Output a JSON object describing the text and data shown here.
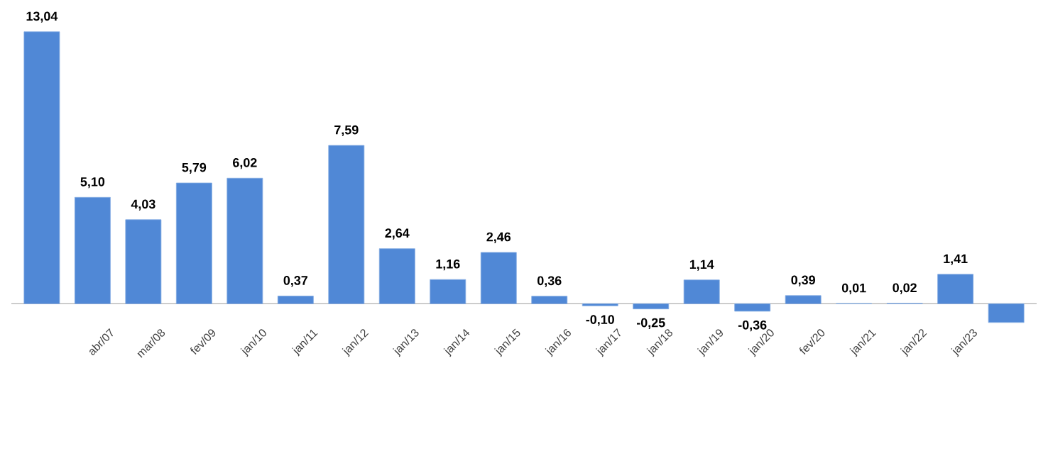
{
  "chart_data": {
    "type": "bar",
    "categories": [
      null,
      "abr/07",
      "mar/08",
      "fev/09",
      "jan/10",
      "jan/11",
      "jan/12",
      "jan/13",
      "jan/14",
      "jan/15",
      "jan/16",
      "jan/17",
      "jan/18",
      "jan/19",
      "jan/20",
      "fev/20",
      "jan/21",
      "jan/22",
      "jan/23",
      null
    ],
    "values": [
      13.04,
      5.1,
      4.03,
      5.79,
      6.02,
      0.37,
      7.59,
      2.64,
      1.16,
      2.46,
      0.36,
      -0.1,
      -0.25,
      1.14,
      -0.36,
      0.39,
      0.01,
      0.02,
      1.41,
      -0.9
    ],
    "value_labels": [
      "13,04",
      "5,10",
      "4,03",
      "5,79",
      "6,02",
      "0,37",
      "7,59",
      "2,64",
      "1,16",
      "2,46",
      "0,36",
      "-0,10",
      "-0,25",
      "1,14",
      "-0,36",
      "0,39",
      "0,01",
      "0,02",
      "1,41",
      null
    ],
    "color": "#5088d6"
  }
}
